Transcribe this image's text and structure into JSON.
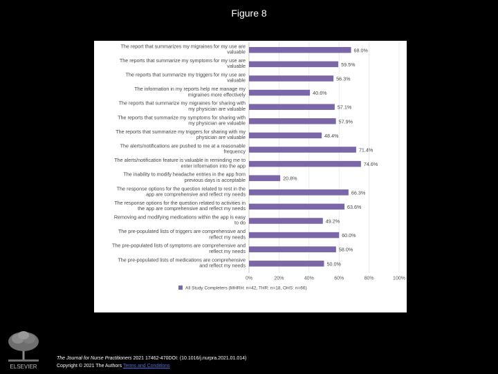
{
  "page": {
    "title": "Figure 8"
  },
  "chart_data": {
    "type": "bar",
    "orientation": "horizontal",
    "categories": [
      [
        "The report that summarizes my migraines for my use are",
        "valuable"
      ],
      [
        "The reports that summarize my symptoms for my use are",
        "valuable"
      ],
      [
        "The reports that summarize my triggers for my use are",
        "valuable"
      ],
      [
        "The information in my reports help me manage my",
        "migraines more effectively"
      ],
      [
        "The reports that summarize my migraines for sharing with",
        "my physician are valuable"
      ],
      [
        "The reports that summarize my symptoms for sharing with",
        "my physician are valuable"
      ],
      [
        "The reports that summarize my triggers for sharing with my",
        "physician are valuable"
      ],
      [
        "The alerts/notifications are pushed to me at a reasonable",
        "frequency"
      ],
      [
        "The alerts/notification feature is valuable in reminding me to",
        "enter information into the app"
      ],
      [
        "The inability to modify headache entries in the app from",
        "previous days is acceptable"
      ],
      [
        "The response options for the question related to rest in the",
        "app are comprehensive and reflect my needs"
      ],
      [
        "The response options for the question related to activities in",
        "the app are comprehensive and reflect my needs"
      ],
      [
        "Removing and modifying medications within the app is easy",
        "to do"
      ],
      [
        "The pre-populated lists of triggers are comprehensive and",
        "reflect my needs"
      ],
      [
        "The pre-populated lists of symptoms are comprehensive and",
        "reflect my needs"
      ],
      [
        "The pre-populated lists of medications are comprehensive",
        "and reflect my needs"
      ]
    ],
    "series": [
      {
        "name": "All Study Completers (MHRH: n=42, THR: n=18, OHS: n=66)",
        "values": [
          68.0,
          59.5,
          56.3,
          40.6,
          57.1,
          57.9,
          48.4,
          71.4,
          74.6,
          20.8,
          66.3,
          63.6,
          49.2,
          60.0,
          58.0,
          50.0
        ],
        "value_labels": [
          "68.0%",
          "59.5%",
          "56.3%",
          "40.6%",
          "57.1%",
          "57.9%",
          "48.4%",
          "71.4%",
          "74.6%",
          "20.8%",
          "66.3%",
          "63.6%",
          "49.2%",
          "60.0%",
          "58.0%",
          "50.0%"
        ],
        "color": "#7b66a8"
      }
    ],
    "xlim": [
      0,
      100
    ],
    "x_ticks": [
      "0%",
      "20%",
      "40%",
      "60%",
      "80%",
      "100%"
    ],
    "legend_position": "bottom",
    "grid": true
  },
  "footer": {
    "journal": "The Journal for Nurse Practitioners",
    "citation": " 2021 17462-470DOI: (10.1016/j.nurpra.2021.01.014)",
    "copyright": "Copyright © 2021 The Authors ",
    "terms_link": "Terms and Conditions",
    "publisher": "ELSEVIER"
  }
}
